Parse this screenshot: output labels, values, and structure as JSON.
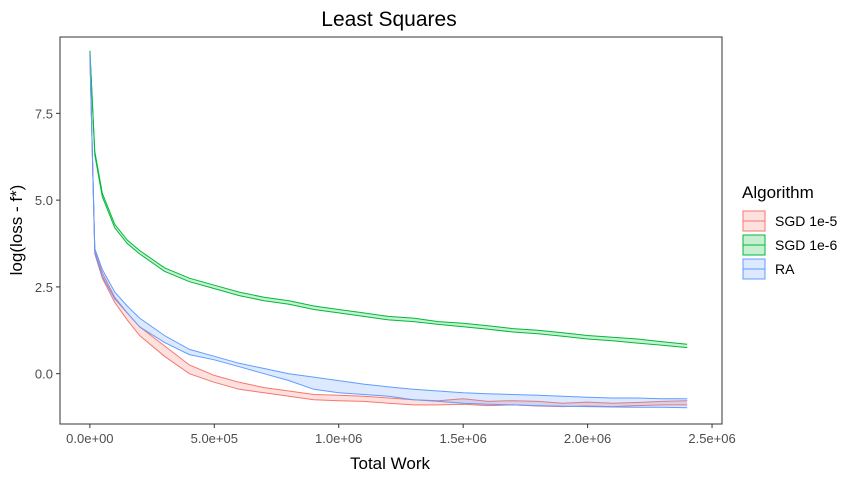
{
  "chart_data": {
    "type": "line",
    "title": "Least Squares",
    "xlabel": "Total Work",
    "ylabel": "log(loss - f*)",
    "xlim": [
      -120000,
      2540000
    ],
    "ylim": [
      -1.45,
      9.7
    ],
    "x_ticks": [
      0,
      500000,
      1000000,
      1500000,
      2000000,
      2500000
    ],
    "x_tick_labels": [
      "0.0e+00",
      "5.0e+05",
      "1.0e+06",
      "1.5e+06",
      "2.0e+06",
      "2.5e+06"
    ],
    "y_ticks": [
      0,
      2.5,
      5,
      7.5
    ],
    "y_tick_labels": [
      "0.0",
      "2.5",
      "5.0",
      "7.5"
    ],
    "grid": false,
    "legend": {
      "title": "Algorithm",
      "position": "right"
    },
    "series": [
      {
        "name": "SGD 1e-5",
        "color": "#F8766D",
        "x": [
          0,
          20000,
          50000,
          100000,
          150000,
          200000,
          300000,
          400000,
          500000,
          600000,
          700000,
          800000,
          900000,
          1000000,
          1100000,
          1200000,
          1300000,
          1400000,
          1500000,
          1600000,
          1700000,
          1800000,
          1900000,
          2000000,
          2100000,
          2200000,
          2300000,
          2400000
        ],
        "upper": [
          9.2,
          3.55,
          2.9,
          2.2,
          1.75,
          1.35,
          0.8,
          0.25,
          -0.05,
          -0.25,
          -0.4,
          -0.5,
          -0.6,
          -0.62,
          -0.65,
          -0.7,
          -0.75,
          -0.78,
          -0.72,
          -0.8,
          -0.78,
          -0.8,
          -0.85,
          -0.82,
          -0.85,
          -0.83,
          -0.8,
          -0.78
        ],
        "lower": [
          9.2,
          3.45,
          2.75,
          2.05,
          1.55,
          1.1,
          0.5,
          0.0,
          -0.25,
          -0.45,
          -0.55,
          -0.65,
          -0.75,
          -0.78,
          -0.8,
          -0.85,
          -0.9,
          -0.9,
          -0.88,
          -0.92,
          -0.9,
          -0.93,
          -0.95,
          -0.93,
          -0.95,
          -0.92,
          -0.9,
          -0.9
        ]
      },
      {
        "name": "SGD 1e-6",
        "color": "#00BA38",
        "x": [
          0,
          20000,
          50000,
          100000,
          150000,
          200000,
          300000,
          400000,
          500000,
          600000,
          700000,
          800000,
          900000,
          1000000,
          1100000,
          1200000,
          1300000,
          1400000,
          1500000,
          1600000,
          1700000,
          1800000,
          1900000,
          2000000,
          2100000,
          2200000,
          2300000,
          2400000
        ],
        "upper": [
          9.3,
          6.4,
          5.2,
          4.3,
          3.85,
          3.55,
          3.05,
          2.75,
          2.55,
          2.35,
          2.2,
          2.1,
          1.95,
          1.85,
          1.75,
          1.65,
          1.6,
          1.5,
          1.45,
          1.38,
          1.3,
          1.25,
          1.18,
          1.1,
          1.05,
          1.0,
          0.92,
          0.85
        ],
        "lower": [
          9.3,
          6.3,
          5.1,
          4.2,
          3.75,
          3.45,
          2.95,
          2.65,
          2.45,
          2.25,
          2.1,
          2.0,
          1.85,
          1.75,
          1.65,
          1.55,
          1.5,
          1.42,
          1.35,
          1.28,
          1.2,
          1.15,
          1.08,
          1.0,
          0.95,
          0.88,
          0.82,
          0.75
        ]
      },
      {
        "name": "RA",
        "color": "#619CFF",
        "x": [
          0,
          20000,
          50000,
          100000,
          150000,
          200000,
          300000,
          400000,
          500000,
          600000,
          700000,
          800000,
          900000,
          1000000,
          1100000,
          1200000,
          1300000,
          1400000,
          1500000,
          1600000,
          1700000,
          1800000,
          1900000,
          2000000,
          2100000,
          2200000,
          2300000,
          2400000
        ],
        "upper": [
          9.2,
          3.6,
          3.0,
          2.35,
          1.95,
          1.6,
          1.1,
          0.7,
          0.5,
          0.3,
          0.15,
          0.0,
          -0.1,
          -0.2,
          -0.3,
          -0.38,
          -0.45,
          -0.5,
          -0.55,
          -0.58,
          -0.6,
          -0.62,
          -0.65,
          -0.68,
          -0.7,
          -0.7,
          -0.72,
          -0.72
        ],
        "lower": [
          9.2,
          3.5,
          2.8,
          2.15,
          1.75,
          1.35,
          0.9,
          0.55,
          0.4,
          0.2,
          0.0,
          -0.2,
          -0.45,
          -0.55,
          -0.6,
          -0.65,
          -0.75,
          -0.8,
          -0.85,
          -0.88,
          -0.9,
          -0.92,
          -0.94,
          -0.95,
          -0.96,
          -0.97,
          -0.97,
          -0.98
        ]
      }
    ]
  }
}
